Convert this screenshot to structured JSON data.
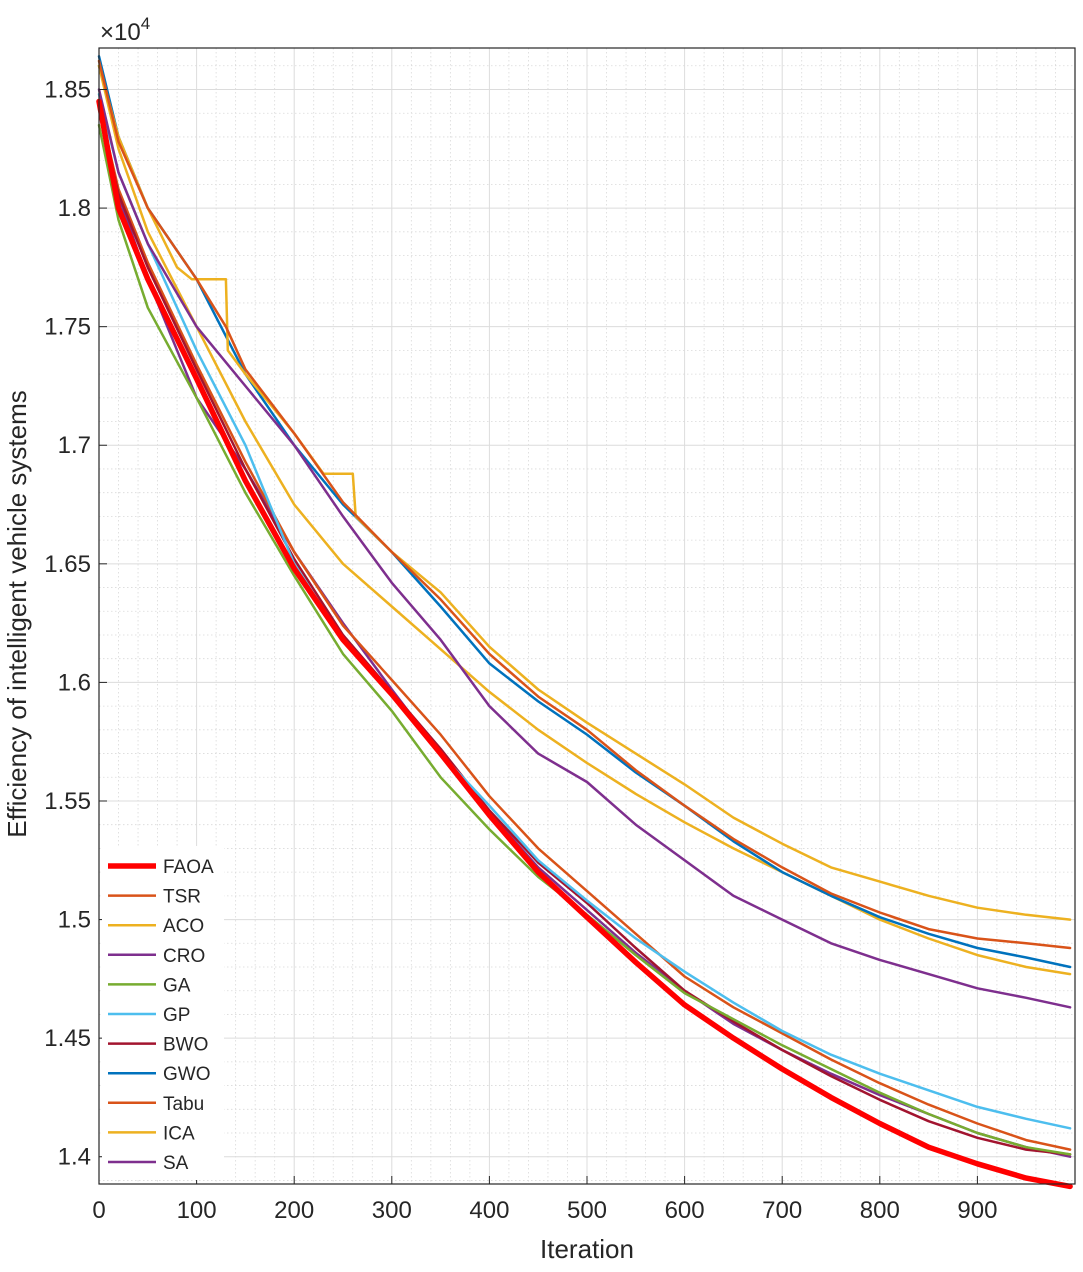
{
  "chart_data": {
    "type": "line",
    "title": "",
    "xlabel": "Iteration",
    "ylabel": "Efficiency of intelligent vehicle systems",
    "y_multiplier_label": "×10",
    "y_multiplier_exponent": "4",
    "xlim": [
      0,
      1000
    ],
    "ylim": [
      1.3885,
      1.8675
    ],
    "grid": true,
    "legend_location": "bottom-left",
    "x_ticks": [
      0,
      100,
      200,
      300,
      400,
      500,
      600,
      700,
      800,
      900
    ],
    "x_tick_labels": [
      "0",
      "100",
      "200",
      "300",
      "400",
      "500",
      "600",
      "700",
      "800",
      "900"
    ],
    "y_ticks": [
      1.4,
      1.45,
      1.5,
      1.55,
      1.6,
      1.65,
      1.7,
      1.75,
      1.8,
      1.85
    ],
    "y_tick_labels": [
      "1.4",
      "1.45",
      "1.5",
      "1.55",
      "1.6",
      "1.65",
      "1.7",
      "1.75",
      "1.8",
      "1.85"
    ],
    "series": [
      {
        "name": "FAOA",
        "color": "#ff0000",
        "width": 5.5,
        "x": [
          0,
          20,
          50,
          100,
          150,
          200,
          250,
          300,
          350,
          400,
          450,
          500,
          550,
          600,
          650,
          700,
          750,
          800,
          850,
          900,
          950,
          995
        ],
        "y": [
          1.845,
          1.8,
          1.77,
          1.728,
          1.685,
          1.648,
          1.618,
          1.595,
          1.57,
          1.544,
          1.52,
          1.501,
          1.482,
          1.464,
          1.45,
          1.437,
          1.425,
          1.414,
          1.404,
          1.397,
          1.391,
          1.3875
        ]
      },
      {
        "name": "TSR",
        "color": "#d95319",
        "width": 2.5,
        "x": [
          0,
          20,
          50,
          100,
          130,
          150,
          200,
          250,
          300,
          350,
          400,
          450,
          500,
          550,
          600,
          650,
          700,
          750,
          800,
          850,
          900,
          950,
          995
        ],
        "y": [
          1.862,
          1.828,
          1.8,
          1.77,
          1.75,
          1.732,
          1.705,
          1.676,
          1.655,
          1.635,
          1.612,
          1.594,
          1.58,
          1.563,
          1.548,
          1.534,
          1.522,
          1.511,
          1.503,
          1.496,
          1.492,
          1.49,
          1.488
        ]
      },
      {
        "name": "ACO",
        "color": "#edb120",
        "width": 2.5,
        "x": [
          0,
          20,
          50,
          80,
          95,
          100,
          130,
          132,
          150,
          200,
          230,
          233,
          260,
          263,
          300,
          350,
          400,
          450,
          500,
          550,
          600,
          650,
          700,
          750,
          800,
          850,
          900,
          950,
          995
        ],
        "y": [
          1.86,
          1.83,
          1.8,
          1.775,
          1.77,
          1.77,
          1.77,
          1.74,
          1.73,
          1.705,
          1.688,
          1.688,
          1.688,
          1.67,
          1.655,
          1.638,
          1.615,
          1.597,
          1.583,
          1.57,
          1.557,
          1.543,
          1.532,
          1.522,
          1.516,
          1.51,
          1.505,
          1.502,
          1.5
        ]
      },
      {
        "name": "CRO",
        "color": "#7e2f8e",
        "width": 2.5,
        "x": [
          0,
          20,
          50,
          100,
          150,
          200,
          250,
          300,
          350,
          400,
          450,
          500,
          550,
          600,
          650,
          700,
          750,
          800,
          850,
          900,
          950,
          995
        ],
        "y": [
          1.85,
          1.815,
          1.785,
          1.75,
          1.725,
          1.7,
          1.67,
          1.642,
          1.618,
          1.59,
          1.57,
          1.558,
          1.54,
          1.525,
          1.51,
          1.5,
          1.49,
          1.483,
          1.477,
          1.471,
          1.467,
          1.463
        ]
      },
      {
        "name": "GA",
        "color": "#77ac30",
        "width": 2.5,
        "x": [
          0,
          20,
          50,
          100,
          150,
          200,
          250,
          300,
          350,
          400,
          450,
          500,
          550,
          600,
          650,
          700,
          750,
          800,
          850,
          900,
          950,
          995
        ],
        "y": [
          1.835,
          1.795,
          1.758,
          1.72,
          1.68,
          1.645,
          1.612,
          1.588,
          1.56,
          1.538,
          1.518,
          1.502,
          1.485,
          1.469,
          1.458,
          1.447,
          1.437,
          1.427,
          1.418,
          1.41,
          1.404,
          1.401
        ]
      },
      {
        "name": "GP",
        "color": "#4dbeee",
        "width": 2.5,
        "x": [
          0,
          20,
          50,
          100,
          150,
          200,
          250,
          300,
          350,
          400,
          450,
          500,
          550,
          600,
          650,
          700,
          750,
          800,
          850,
          900,
          950,
          995
        ],
        "y": [
          1.848,
          1.815,
          1.785,
          1.74,
          1.7,
          1.65,
          1.618,
          1.595,
          1.57,
          1.548,
          1.525,
          1.508,
          1.492,
          1.478,
          1.465,
          1.453,
          1.443,
          1.435,
          1.428,
          1.421,
          1.416,
          1.412
        ]
      },
      {
        "name": "BWO",
        "color": "#a2142f",
        "width": 2.5,
        "x": [
          0,
          20,
          50,
          100,
          150,
          200,
          250,
          300,
          350,
          400,
          450,
          500,
          550,
          600,
          650,
          700,
          750,
          800,
          850,
          900,
          950,
          995
        ],
        "y": [
          1.842,
          1.806,
          1.775,
          1.732,
          1.69,
          1.652,
          1.62,
          1.596,
          1.572,
          1.546,
          1.524,
          1.507,
          1.488,
          1.47,
          1.457,
          1.445,
          1.434,
          1.424,
          1.415,
          1.408,
          1.403,
          1.401
        ]
      },
      {
        "name": "GWO",
        "color": "#0072bd",
        "width": 2.5,
        "x": [
          0,
          20,
          50,
          100,
          150,
          200,
          250,
          300,
          350,
          400,
          450,
          500,
          550,
          600,
          650,
          700,
          750,
          800,
          850,
          900,
          950,
          995
        ],
        "y": [
          1.864,
          1.83,
          1.8,
          1.77,
          1.73,
          1.7,
          1.675,
          1.655,
          1.632,
          1.608,
          1.592,
          1.578,
          1.562,
          1.548,
          1.533,
          1.52,
          1.51,
          1.501,
          1.494,
          1.488,
          1.484,
          1.48
        ]
      },
      {
        "name": "Tabu",
        "color": "#d95319",
        "width": 2.5,
        "x": [
          0,
          20,
          50,
          100,
          150,
          200,
          250,
          300,
          350,
          400,
          450,
          500,
          550,
          600,
          650,
          700,
          750,
          800,
          850,
          900,
          950,
          995
        ],
        "y": [
          1.843,
          1.808,
          1.777,
          1.734,
          1.693,
          1.655,
          1.624,
          1.601,
          1.578,
          1.552,
          1.53,
          1.512,
          1.494,
          1.476,
          1.463,
          1.452,
          1.441,
          1.431,
          1.422,
          1.414,
          1.407,
          1.403
        ]
      },
      {
        "name": "ICA",
        "color": "#edb120",
        "width": 2.5,
        "x": [
          0,
          20,
          50,
          100,
          150,
          200,
          250,
          300,
          350,
          400,
          450,
          500,
          550,
          600,
          650,
          700,
          750,
          800,
          850,
          900,
          950,
          995
        ],
        "y": [
          1.86,
          1.825,
          1.79,
          1.75,
          1.71,
          1.675,
          1.65,
          1.632,
          1.614,
          1.596,
          1.58,
          1.566,
          1.553,
          1.541,
          1.53,
          1.52,
          1.51,
          1.5,
          1.492,
          1.485,
          1.48,
          1.477
        ]
      },
      {
        "name": "SA",
        "color": "#7e2f8e",
        "width": 2.5,
        "x": [
          0,
          20,
          50,
          100,
          150,
          200,
          250,
          300,
          350,
          400,
          450,
          500,
          550,
          600,
          650,
          700,
          750,
          800,
          850,
          900,
          950,
          995
        ],
        "y": [
          1.845,
          1.805,
          1.77,
          1.72,
          1.69,
          1.655,
          1.625,
          1.597,
          1.57,
          1.545,
          1.522,
          1.504,
          1.486,
          1.47,
          1.456,
          1.445,
          1.435,
          1.426,
          1.418,
          1.41,
          1.404,
          1.4
        ]
      }
    ]
  }
}
